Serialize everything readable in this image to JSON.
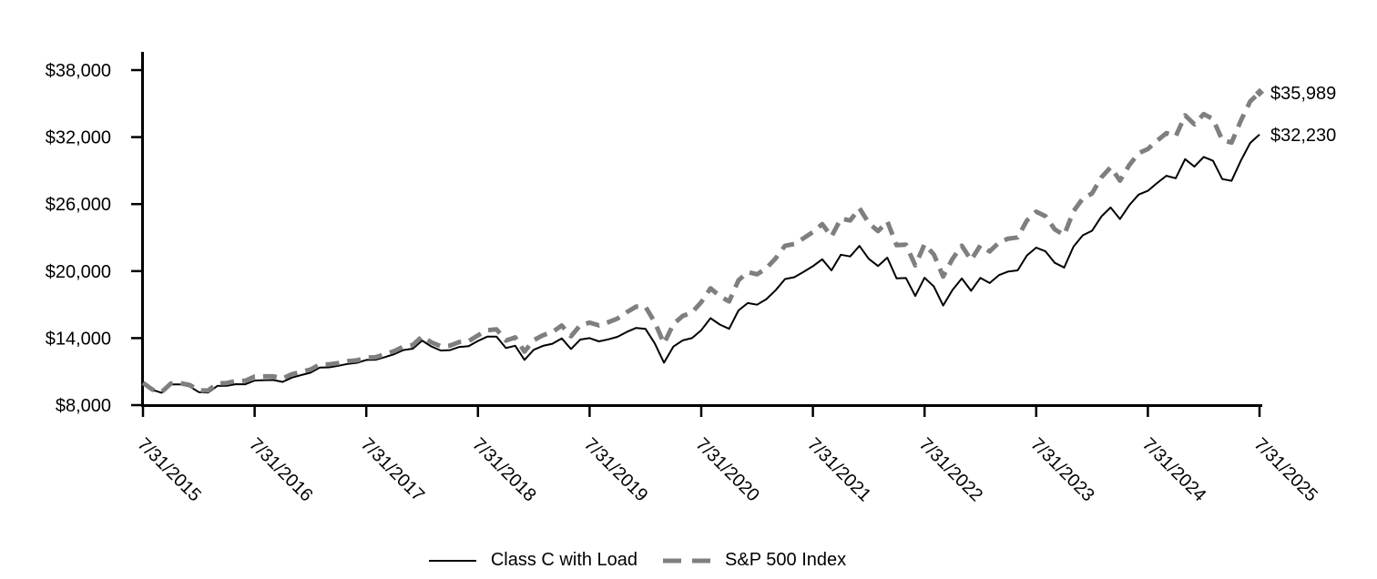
{
  "chart_data": {
    "type": "line",
    "title": "",
    "xlabel": "",
    "ylabel": "",
    "grid": false,
    "legend_position": "bottom-center",
    "ylim": [
      8000,
      38000
    ],
    "y_ticks": [
      8000,
      14000,
      20000,
      26000,
      32000,
      38000
    ],
    "y_tick_labels": [
      "$8,000",
      "$14,000",
      "$20,000",
      "$26,000",
      "$32,000",
      "$38,000"
    ],
    "x_tick_labels": [
      "7/31/2015",
      "7/31/2016",
      "7/31/2017",
      "7/31/2018",
      "7/31/2019",
      "7/31/2020",
      "7/31/2021",
      "7/31/2022",
      "7/31/2023",
      "7/31/2024",
      "7/31/2025"
    ],
    "x_range": {
      "start": "7/31/2015",
      "end": "7/31/2025",
      "frequency": "monthly",
      "points": 121
    },
    "series": [
      {
        "name": "Class C with Load",
        "color": "#000000",
        "style": "solid",
        "end_label": "$32,230",
        "final_value": 32230,
        "values": [
          10000,
          9370,
          9112,
          9853,
          9854,
          9671,
          9165,
          9125,
          9717,
          9726,
          9871,
          9868,
          10202,
          10231,
          10248,
          10076,
          10465,
          10687,
          10906,
          11355,
          11385,
          11518,
          11697,
          11787,
          12047,
          12065,
          12295,
          12563,
          12928,
          13051,
          13777,
          13249,
          12893,
          12923,
          13213,
          13274,
          13746,
          14127,
          14140,
          13110,
          13313,
          12052,
          12954,
          13305,
          13497,
          13974,
          13021,
          13869,
          13998,
          13705,
          13889,
          14117,
          14553,
          14914,
          14829,
          13537,
          11801,
          13243,
          13800,
          13998,
          14707,
          15789,
          15212,
          14831,
          16480,
          17140,
          16993,
          17490,
          18284,
          19288,
          19453,
          19938,
          20442,
          21056,
          20069,
          21467,
          21310,
          22256,
          21097,
          20457,
          21208,
          19351,
          19379,
          17773,
          19404,
          18625,
          16921,
          18303,
          19339,
          18237,
          19396,
          18936,
          19644,
          19964,
          20064,
          21404,
          22106,
          21767,
          20741,
          20317,
          22184,
          23205,
          23608,
          24884,
          25699,
          24663,
          25901,
          26845,
          27187,
          27891,
          28532,
          28318,
          30028,
          29358,
          30223,
          29878,
          28243,
          28090,
          29905,
          31481,
          32230
        ]
      },
      {
        "name": "S&P 500 Index",
        "color": "#7f7f7f",
        "style": "dashed",
        "end_label": "$35,989",
        "final_value": 35989,
        "values": [
          10000,
          9397,
          9164,
          9937,
          9967,
          9810,
          9323,
          9310,
          9942,
          9980,
          10159,
          10186,
          10561,
          10576,
          10578,
          10385,
          10770,
          10983,
          11191,
          11635,
          11649,
          11768,
          11934,
          12008,
          12255,
          12292,
          12546,
          12839,
          13232,
          13379,
          14145,
          13624,
          13278,
          13329,
          13650,
          13734,
          14245,
          14709,
          14793,
          13782,
          14063,
          12793,
          13818,
          14262,
          14539,
          15128,
          14166,
          15164,
          15382,
          15138,
          15421,
          15755,
          16327,
          16820,
          16813,
          15429,
          13523,
          15257,
          15984,
          16302,
          17221,
          18459,
          17758,
          17286,
          19178,
          19915,
          19714,
          20258,
          21145,
          22273,
          22429,
          22952,
          23497,
          24212,
          23086,
          24703,
          24532,
          25631,
          24305,
          23577,
          24452,
          22320,
          22361,
          20515,
          22407,
          21493,
          19513,
          21093,
          22271,
          20988,
          22307,
          21763,
          22562,
          22914,
          23014,
          24534,
          25322,
          24919,
          23731,
          23232,
          25353,
          26505,
          26950,
          28390,
          29303,
          28106,
          29500,
          30558,
          30930,
          31681,
          32358,
          32065,
          33947,
          33138,
          34062,
          33620,
          31731,
          31510,
          33494,
          35205,
          35989
        ]
      }
    ]
  }
}
